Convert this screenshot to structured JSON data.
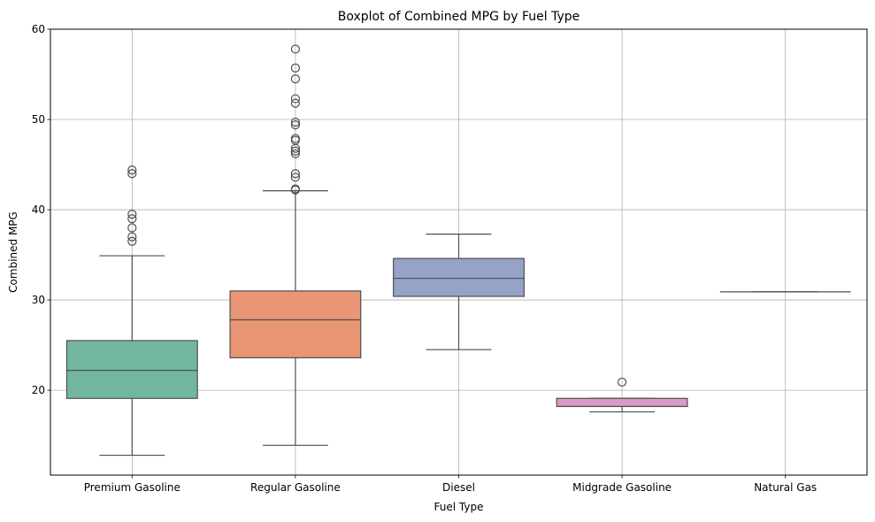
{
  "chart_data": {
    "type": "boxplot",
    "title": "Boxplot of Combined MPG by Fuel Type",
    "xlabel": "Fuel Type",
    "ylabel": "Combined MPG",
    "ylim": [
      10.6,
      60
    ],
    "yticks": [
      20,
      30,
      40,
      50,
      60
    ],
    "grid": true,
    "legend": "none",
    "categories": [
      "Premium Gasoline",
      "Regular Gasoline",
      "Diesel",
      "Midgrade Gasoline",
      "Natural Gas"
    ],
    "colors": [
      "#72b6a1",
      "#e99675",
      "#95a3c6",
      "#d99ac5",
      "#a5c96e"
    ],
    "boxes": [
      {
        "category": "Premium Gasoline",
        "whisker_low": 12.8,
        "q1": 19.1,
        "median": 22.2,
        "q3": 25.5,
        "whisker_high": 34.9,
        "outliers": [
          36.5,
          37.0,
          38.0,
          39.0,
          39.5,
          44.0,
          44.4
        ]
      },
      {
        "category": "Regular Gasoline",
        "whisker_low": 13.9,
        "q1": 23.6,
        "median": 27.8,
        "q3": 31.0,
        "whisker_high": 42.1,
        "outliers": [
          42.2,
          42.3,
          43.6,
          44.0,
          46.2,
          46.5,
          46.8,
          47.7,
          47.9,
          49.4,
          49.7,
          51.8,
          52.3,
          54.5,
          55.7,
          57.8
        ]
      },
      {
        "category": "Diesel",
        "whisker_low": 24.5,
        "q1": 30.4,
        "median": 32.4,
        "q3": 34.6,
        "whisker_high": 37.3,
        "outliers": []
      },
      {
        "category": "Midgrade Gasoline",
        "whisker_low": 17.6,
        "q1": 18.2,
        "median": 18.2,
        "q3": 19.1,
        "whisker_high": 19.1,
        "outliers": [
          20.9
        ]
      },
      {
        "category": "Natural Gas",
        "whisker_low": 30.9,
        "q1": 30.9,
        "median": 30.9,
        "q3": 30.9,
        "whisker_high": 30.9,
        "outliers": []
      }
    ]
  }
}
